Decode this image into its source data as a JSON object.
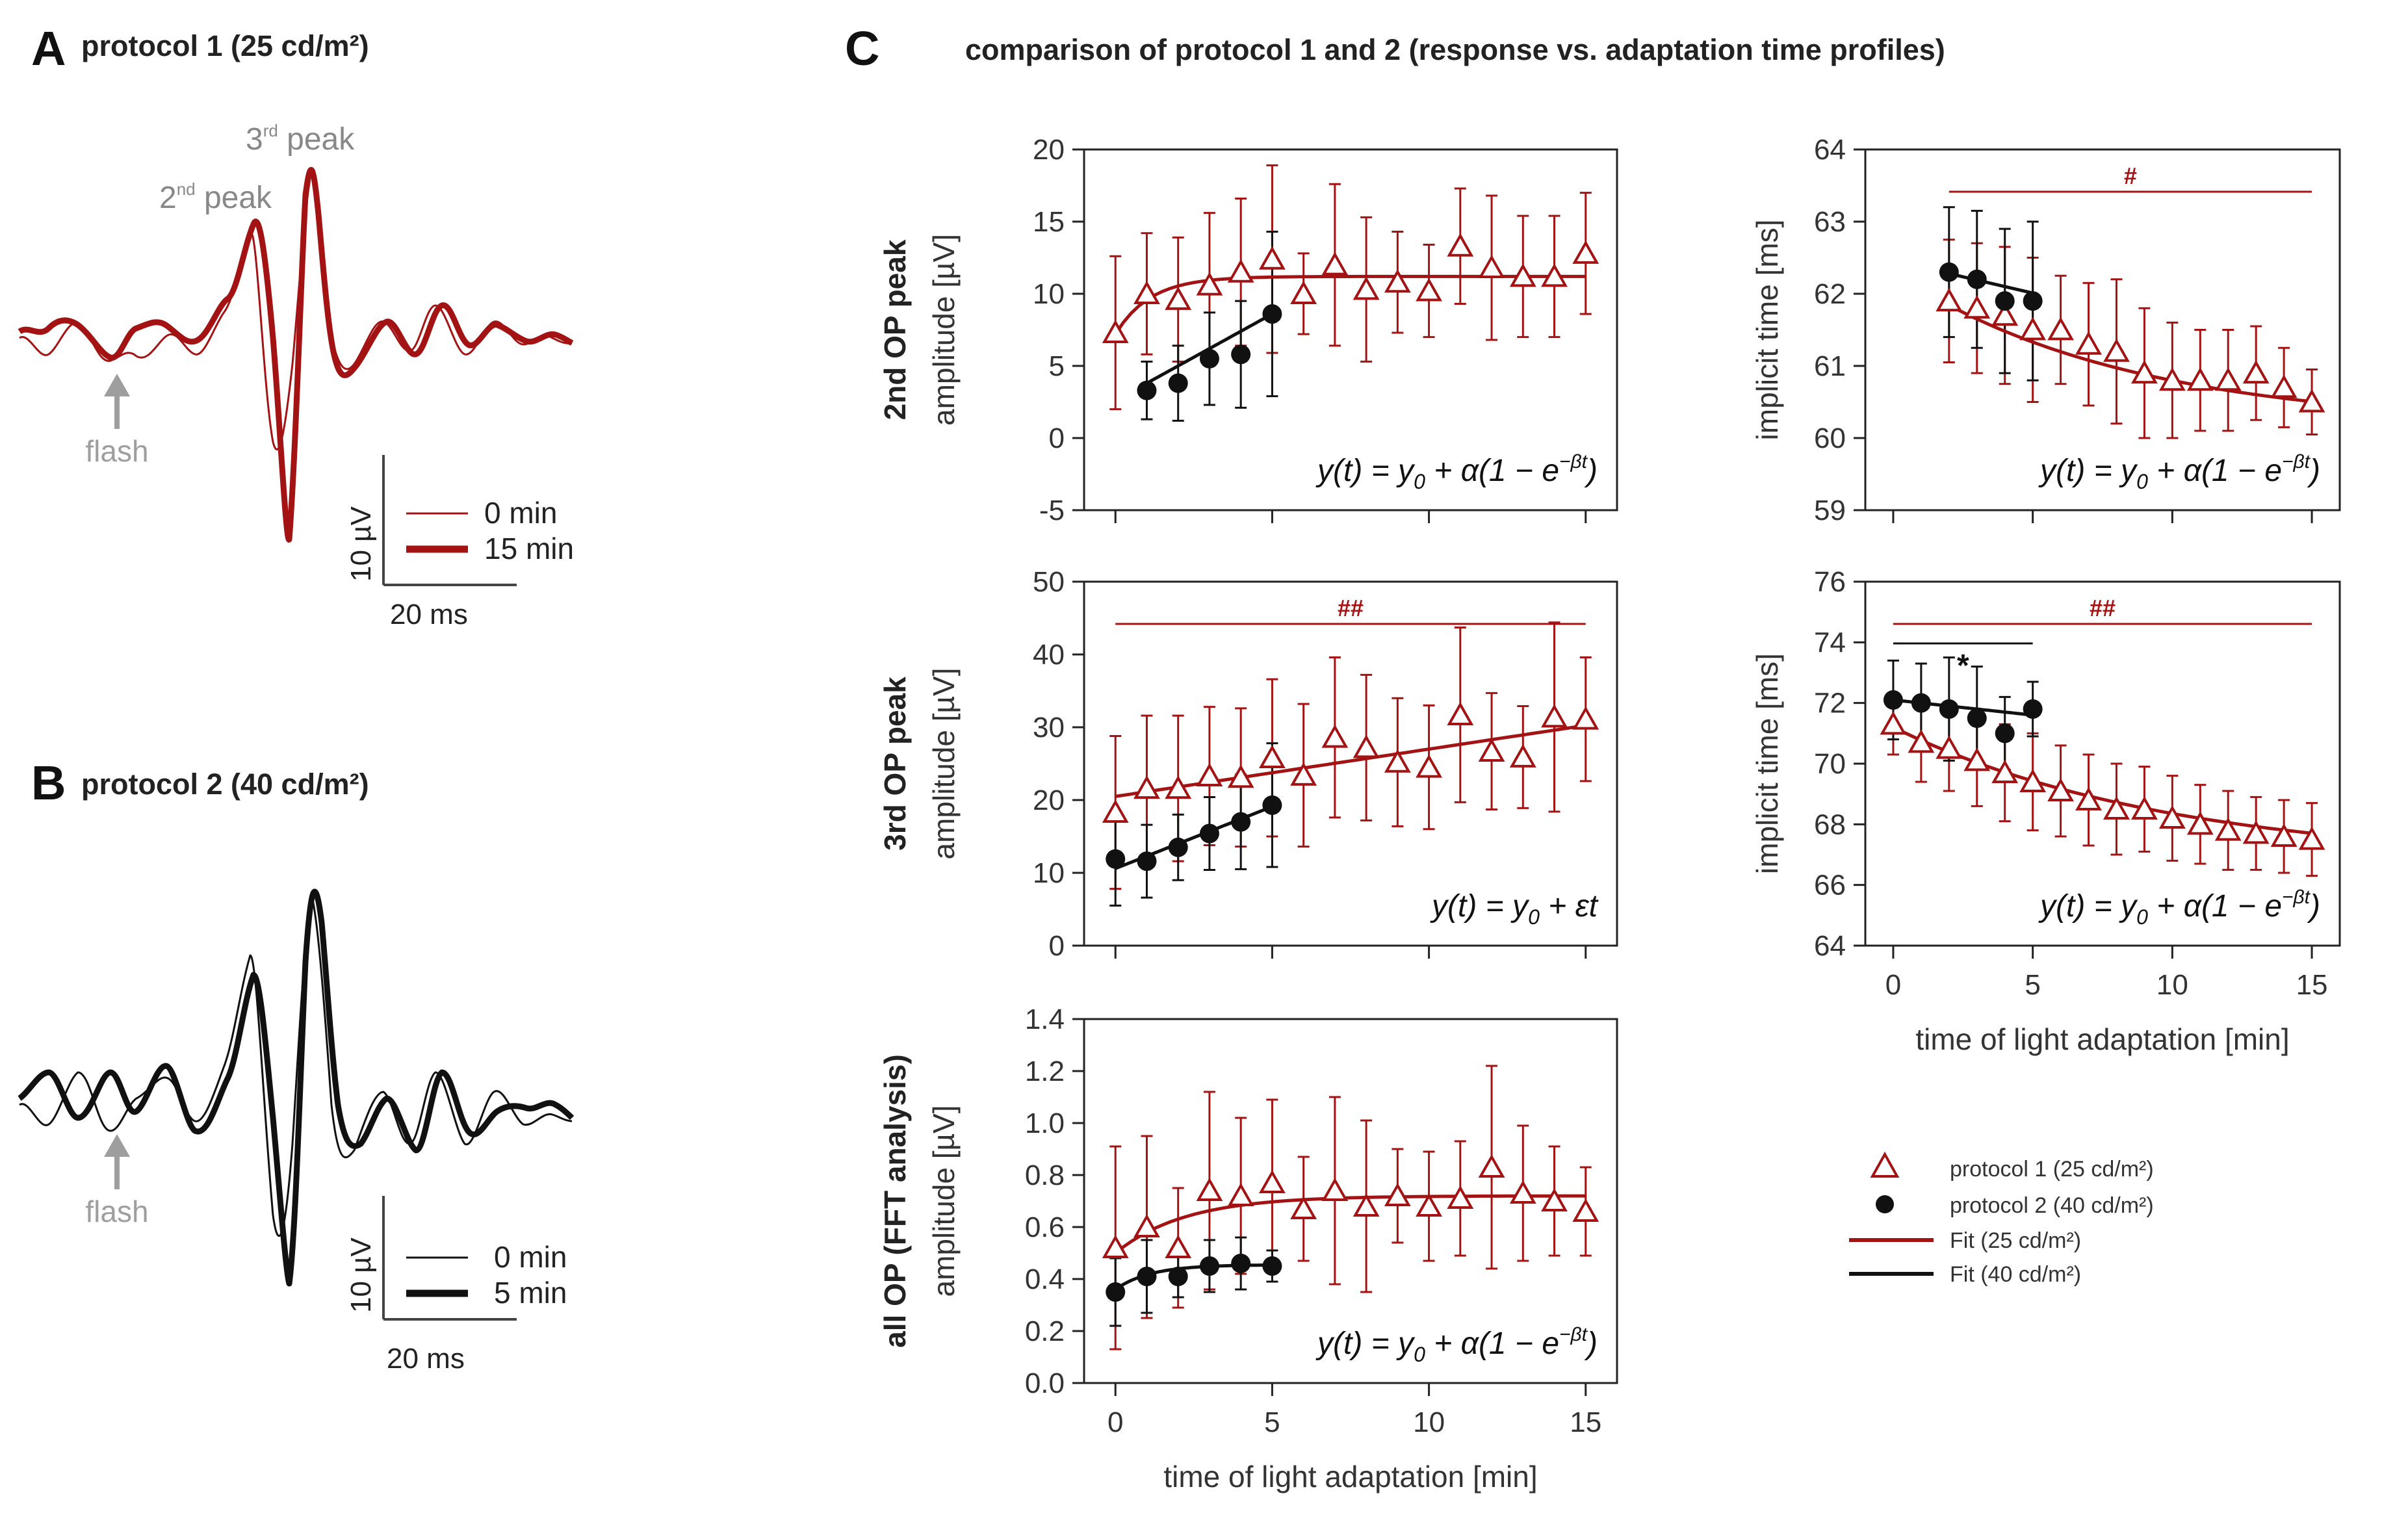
{
  "colors": {
    "red": "#a31313",
    "black": "#111111",
    "grey": "#9e9e9e",
    "axis": "#222222"
  },
  "panel_a": {
    "letter": "A",
    "title": "protocol 1 (25 cd/m²)",
    "peak2_main": "2",
    "peak2_sup": "nd",
    "peak2_rest": " peak",
    "peak3_main": "3",
    "peak3_sup": "rd",
    "peak3_rest": " peak",
    "flash_label": "flash",
    "legend_thin": "0 min",
    "legend_thick": "15 min",
    "scale_v": "10 µV",
    "scale_t": "20 ms"
  },
  "panel_b": {
    "letter": "B",
    "title": "protocol 2 (40 cd/m²)",
    "flash_label": "flash",
    "legend_thin": "0 min",
    "legend_thick": "5 min",
    "scale_v": "10 µV",
    "scale_t": "20 ms"
  },
  "panel_c": {
    "letter": "C",
    "title": "comparison of protocol 1 and 2 (response vs. adaptation time profiles)",
    "xlabel": "time of light adaptation [min]",
    "legend": [
      "protocol 1 (25 cd/m²)",
      "protocol 2 (40 cd/m²)",
      "Fit (25 cd/m²)",
      "Fit (40 cd/m²)"
    ]
  },
  "chart_data": [
    {
      "id": "amp2",
      "type": "scatter",
      "row_label": "2nd OP peak",
      "ylabel": "amplitude [µV]",
      "xlim": [
        -1,
        16
      ],
      "ylim": [
        -5,
        20
      ],
      "yticks": [
        -5,
        0,
        5,
        10,
        15,
        20
      ],
      "ytick_labels": [
        "-5",
        "0",
        "5",
        "10",
        "15",
        "20"
      ],
      "xticks": [
        0,
        5,
        10,
        15
      ],
      "xtick_labels": [],
      "equation": {
        "lhs": "y(t) = y",
        "sub": "0",
        "mid": " + α(1 − e",
        "sup": "−βt",
        "end": ")"
      },
      "fit_p1": {
        "model": "exp",
        "y0": 7.2,
        "alpha": 4.0,
        "beta": 0.9,
        "t": [
          0,
          15
        ]
      },
      "fit_p2": {
        "model": "linear",
        "y0": 2.6,
        "eps": 1.2,
        "t": [
          1,
          5
        ]
      },
      "series": [
        {
          "name": "protocol 1 (25 cd/m²)",
          "marker": "triangle",
          "x": [
            0,
            1,
            2,
            3,
            4,
            5,
            6,
            7,
            8,
            9,
            10,
            11,
            12,
            13,
            14,
            15
          ],
          "y": [
            7.3,
            10.0,
            9.6,
            10.6,
            11.5,
            12.4,
            10.0,
            12.0,
            10.3,
            10.8,
            10.2,
            13.3,
            11.8,
            11.2,
            11.2,
            12.8
          ],
          "err": [
            5.3,
            4.2,
            4.3,
            5.0,
            5.1,
            6.5,
            2.8,
            5.6,
            5.0,
            3.5,
            3.2,
            4.0,
            5.0,
            4.2,
            4.2,
            4.2
          ]
        },
        {
          "name": "protocol 2 (40 cd/m²)",
          "marker": "circle",
          "x": [
            1,
            2,
            3,
            4,
            5
          ],
          "y": [
            3.3,
            3.8,
            5.5,
            5.8,
            8.6
          ],
          "err": [
            2.0,
            2.6,
            3.2,
            3.7,
            5.7
          ]
        }
      ]
    },
    {
      "id": "time2",
      "type": "scatter",
      "ylabel": "implicit time [ms]",
      "xlim": [
        -1,
        16
      ],
      "ylim": [
        59,
        64
      ],
      "yticks": [
        59,
        60,
        61,
        62,
        63,
        64
      ],
      "ytick_labels": [
        "59",
        "60",
        "61",
        "62",
        "63",
        "64"
      ],
      "xticks": [
        0,
        5,
        10,
        15
      ],
      "xtick_labels": [],
      "sig_p1": {
        "label": "#",
        "from": 2,
        "to": 15
      },
      "equation": {
        "lhs": "y(t) = y",
        "sub": "0",
        "mid": " + α(1 − e",
        "sup": "−βt",
        "end": ")"
      },
      "fit_p1": {
        "model": "exp",
        "y0": 62.3,
        "alpha": -2.15,
        "beta": 0.12,
        "t": [
          2,
          15
        ]
      },
      "fit_p2": {
        "model": "linear",
        "y0": 62.46,
        "eps": -0.09,
        "t": [
          2,
          5
        ]
      },
      "series": [
        {
          "name": "protocol 1 (25 cd/m²)",
          "marker": "triangle",
          "x": [
            2,
            3,
            4,
            5,
            6,
            7,
            8,
            9,
            10,
            11,
            12,
            13,
            14,
            15
          ],
          "y": [
            61.9,
            61.8,
            61.7,
            61.5,
            61.5,
            61.3,
            61.2,
            60.9,
            60.8,
            60.8,
            60.8,
            60.9,
            60.7,
            60.5
          ],
          "err": [
            0.85,
            0.9,
            0.95,
            1.0,
            0.75,
            0.85,
            1.0,
            0.9,
            0.8,
            0.7,
            0.7,
            0.65,
            0.55,
            0.45
          ]
        },
        {
          "name": "protocol 2 (40 cd/m²)",
          "marker": "circle",
          "x": [
            2,
            3,
            4,
            5
          ],
          "y": [
            62.3,
            62.2,
            61.9,
            61.9
          ],
          "err": [
            0.9,
            0.95,
            1.0,
            1.1
          ]
        }
      ]
    },
    {
      "id": "amp3",
      "type": "scatter",
      "row_label": "3rd OP peak",
      "ylabel": "amplitude [µV]",
      "xlim": [
        -1,
        16
      ],
      "ylim": [
        0,
        50
      ],
      "yticks": [
        0,
        10,
        20,
        30,
        40,
        50
      ],
      "ytick_labels": [
        "0",
        "10",
        "20",
        "30",
        "40",
        "50"
      ],
      "xticks": [
        0,
        5,
        10,
        15
      ],
      "xtick_labels": [],
      "sig_p1": {
        "label": "##",
        "from": 0,
        "to": 15
      },
      "equation": {
        "lhs": "y(t) = y",
        "sub": "0",
        "mid": " + εt",
        "sup": "",
        "end": ""
      },
      "fit_p1": {
        "model": "linear",
        "y0": 20.5,
        "eps": 0.65,
        "t": [
          0,
          15
        ]
      },
      "fit_p2": {
        "model": "linear",
        "y0": 10.6,
        "eps": 1.7,
        "t": [
          0,
          5
        ]
      },
      "series": [
        {
          "name": "protocol 1 (25 cd/m²)",
          "marker": "triangle",
          "x": [
            0,
            1,
            2,
            3,
            4,
            5,
            6,
            7,
            8,
            9,
            10,
            11,
            12,
            13,
            14,
            15
          ],
          "y": [
            18.3,
            21.6,
            21.6,
            23.3,
            23.1,
            25.8,
            23.4,
            28.6,
            27.2,
            25.2,
            24.5,
            31.7,
            26.7,
            25.9,
            31.4,
            31.1
          ],
          "err": [
            10.5,
            10.0,
            10.0,
            9.5,
            9.5,
            10.8,
            9.8,
            11.0,
            10.0,
            8.8,
            8.5,
            12.0,
            8.0,
            7.0,
            13.0,
            8.5
          ]
        },
        {
          "name": "protocol 2 (40 cd/m²)",
          "marker": "circle",
          "x": [
            0,
            1,
            2,
            3,
            4,
            5
          ],
          "y": [
            11.9,
            11.6,
            13.5,
            15.4,
            17.0,
            19.3
          ],
          "err": [
            6.4,
            5.0,
            4.5,
            5.0,
            6.5,
            8.5
          ]
        }
      ]
    },
    {
      "id": "time3",
      "type": "scatter",
      "ylabel": "implicit time [ms]",
      "xlim": [
        -1,
        16
      ],
      "ylim": [
        64,
        76
      ],
      "yticks": [
        64,
        66,
        68,
        70,
        72,
        74,
        76
      ],
      "ytick_labels": [
        "64",
        "66",
        "68",
        "70",
        "72",
        "74",
        "76"
      ],
      "xticks": [
        0,
        5,
        10,
        15
      ],
      "xtick_labels": [
        "0",
        "5",
        "10",
        "15"
      ],
      "xlabel": "time of light adaptation [min]",
      "sig_p1": {
        "label": "##",
        "from": 0,
        "to": 15
      },
      "sig_p2": {
        "label": "*",
        "from": 0,
        "to": 5
      },
      "equation": {
        "lhs": "y(t) = y",
        "sub": "0",
        "mid": " + α(1 − e",
        "sup": "−βt",
        "end": ")"
      },
      "fit_p1": {
        "model": "exp",
        "y0": 71.2,
        "alpha": -4.5,
        "beta": 0.1,
        "t": [
          0,
          15
        ]
      },
      "fit_p2": {
        "model": "linear",
        "y0": 72.1,
        "eps": -0.1,
        "t": [
          0,
          5
        ]
      },
      "series": [
        {
          "name": "protocol 1 (25 cd/m²)",
          "marker": "triangle",
          "x": [
            0,
            1,
            2,
            3,
            4,
            5,
            6,
            7,
            8,
            9,
            10,
            11,
            12,
            13,
            14,
            15
          ],
          "y": [
            71.3,
            70.7,
            70.5,
            70.1,
            69.7,
            69.4,
            69.1,
            68.8,
            68.5,
            68.5,
            68.2,
            68.0,
            67.8,
            67.7,
            67.6,
            67.5
          ],
          "err": [
            1.0,
            1.3,
            1.4,
            1.5,
            1.6,
            1.6,
            1.5,
            1.5,
            1.5,
            1.4,
            1.4,
            1.3,
            1.3,
            1.2,
            1.2,
            1.2
          ]
        },
        {
          "name": "protocol 2 (40 cd/m²)",
          "marker": "circle",
          "x": [
            0,
            1,
            2,
            3,
            4,
            5
          ],
          "y": [
            72.1,
            72.0,
            71.8,
            71.5,
            71.0,
            71.8
          ],
          "err": [
            1.3,
            1.3,
            1.7,
            1.7,
            1.2,
            0.9
          ]
        }
      ]
    },
    {
      "id": "ampall",
      "type": "scatter",
      "row_label": "all OP (FFT analysis)",
      "ylabel": "amplitude [µV]",
      "xlim": [
        -1,
        16
      ],
      "ylim": [
        0,
        1.4
      ],
      "yticks": [
        0,
        0.2,
        0.4,
        0.6,
        0.8,
        1.0,
        1.2,
        1.4
      ],
      "ytick_labels": [
        "0.0",
        "0.2",
        "0.4",
        "0.6",
        "0.8",
        "1.0",
        "1.2",
        "1.4"
      ],
      "xticks": [
        0,
        5,
        10,
        15
      ],
      "xtick_labels": [
        "0",
        "5",
        "10",
        "15"
      ],
      "xlabel": "time of light adaptation [min]",
      "equation": {
        "lhs": "y(t) = y",
        "sub": "0",
        "mid": " + α(1 − e",
        "sup": "−βt",
        "end": ")"
      },
      "fit_p1": {
        "model": "exp",
        "y0": 0.5,
        "alpha": 0.22,
        "beta": 0.45,
        "t": [
          0,
          15
        ]
      },
      "fit_p2": {
        "model": "exp",
        "y0": 0.36,
        "alpha": 0.095,
        "beta": 0.9,
        "t": [
          0,
          5
        ]
      },
      "series": [
        {
          "name": "protocol 1 (25 cd/m²)",
          "marker": "triangle",
          "x": [
            0,
            1,
            2,
            3,
            4,
            5,
            6,
            7,
            8,
            9,
            10,
            11,
            12,
            13,
            14,
            15
          ],
          "y": [
            0.52,
            0.6,
            0.52,
            0.74,
            0.72,
            0.77,
            0.67,
            0.74,
            0.68,
            0.72,
            0.68,
            0.71,
            0.83,
            0.73,
            0.7,
            0.66
          ],
          "err": [
            0.39,
            0.35,
            0.23,
            0.38,
            0.3,
            0.32,
            0.2,
            0.36,
            0.33,
            0.18,
            0.21,
            0.22,
            0.39,
            0.26,
            0.21,
            0.17
          ]
        },
        {
          "name": "protocol 2 (40 cd/m²)",
          "marker": "circle",
          "x": [
            0,
            1,
            2,
            3,
            4,
            5
          ],
          "y": [
            0.35,
            0.41,
            0.41,
            0.45,
            0.46,
            0.45
          ],
          "err": [
            0.13,
            0.14,
            0.08,
            0.1,
            0.1,
            0.06
          ]
        }
      ]
    }
  ]
}
